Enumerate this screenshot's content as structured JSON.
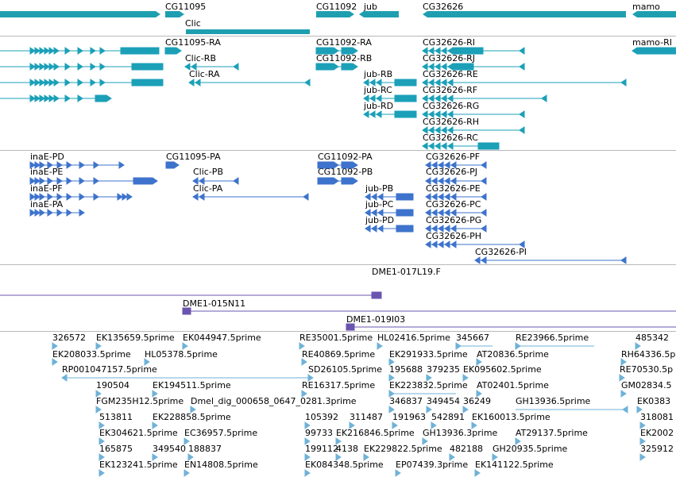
{
  "colors": {
    "gene": "#1e9fb0",
    "mrna": "#1ba0b8",
    "protein": "#3d73cc",
    "clone": "#6a54b0",
    "est": "#6fb2d8",
    "divider": "#b9b9b9"
  },
  "tracks": {
    "genes": [
      {
        "name": "gene-cg11095",
        "label": "CG11095"
      },
      {
        "name": "gene-cg11092",
        "label": "CG11092"
      },
      {
        "name": "gene-jub",
        "label": "jub"
      },
      {
        "name": "gene-cg32626",
        "label": "CG32626"
      },
      {
        "name": "gene-mamo",
        "label": "mamo"
      },
      {
        "name": "gene-clic",
        "label": "Clic"
      }
    ],
    "transcripts": [
      {
        "name": "cg11095-ra",
        "label": "CG11095-RA"
      },
      {
        "name": "cg11092-ra",
        "label": "CG11092-RA"
      },
      {
        "name": "cg32626-ri",
        "label": "CG32626-RI"
      },
      {
        "name": "mamo-ri",
        "label": "mamo-RI"
      },
      {
        "name": "clic-rb",
        "label": "Clic-RB"
      },
      {
        "name": "cg11092-rb",
        "label": "CG11092-RB"
      },
      {
        "name": "cg32626-rj",
        "label": "CG32626-RJ"
      },
      {
        "name": "clic-ra",
        "label": "Clic-RA"
      },
      {
        "name": "jub-rb",
        "label": "jub-RB"
      },
      {
        "name": "cg32626-re",
        "label": "CG32626-RE"
      },
      {
        "name": "jub-rc",
        "label": "jub-RC"
      },
      {
        "name": "cg32626-rf",
        "label": "CG32626-RF"
      },
      {
        "name": "jub-rd",
        "label": "jub-RD"
      },
      {
        "name": "cg32626-rg",
        "label": "CG32626-RG"
      },
      {
        "name": "cg32626-rh",
        "label": "CG32626-RH"
      },
      {
        "name": "cg32626-rc",
        "label": "CG32626-RC"
      }
    ],
    "proteins": [
      {
        "name": "inae-pd",
        "label": "inaE-PD"
      },
      {
        "name": "cg11095-pa",
        "label": "CG11095-PA"
      },
      {
        "name": "cg11092-pa",
        "label": "CG11092-PA"
      },
      {
        "name": "cg32626-pf",
        "label": "CG32626-PF"
      },
      {
        "name": "inae-pe",
        "label": "inaE-PE"
      },
      {
        "name": "clic-pb",
        "label": "Clic-PB"
      },
      {
        "name": "cg11092-pb",
        "label": "CG11092-PB"
      },
      {
        "name": "cg32626-pj",
        "label": "CG32626-PJ"
      },
      {
        "name": "inae-pf",
        "label": "inaE-PF"
      },
      {
        "name": "clic-pa",
        "label": "Clic-PA"
      },
      {
        "name": "jub-pb",
        "label": "jub-PB"
      },
      {
        "name": "cg32626-pe",
        "label": "CG32626-PE"
      },
      {
        "name": "inae-pa",
        "label": "inaE-PA"
      },
      {
        "name": "jub-pc",
        "label": "jub-PC"
      },
      {
        "name": "cg32626-pc",
        "label": "CG32626-PC"
      },
      {
        "name": "jub-pd",
        "label": "jub-PD"
      },
      {
        "name": "cg32626-pg",
        "label": "CG32626-PG"
      },
      {
        "name": "cg32626-ph",
        "label": "CG32626-PH"
      },
      {
        "name": "cg32626-pi",
        "label": "CG32626-PI"
      }
    ],
    "clones": [
      {
        "name": "dme1-017l19f",
        "label": "DME1-017L19.F"
      },
      {
        "name": "dme1-015n11",
        "label": "DME1-015N11"
      },
      {
        "name": "dme1-019i03",
        "label": "DME1-019I03"
      }
    ],
    "ests": [
      {
        "name": "est-326572",
        "label": "326572"
      },
      {
        "name": "est-ek135659",
        "label": "EK135659.5prime"
      },
      {
        "name": "est-ek044947",
        "label": "EK044947.5prime"
      },
      {
        "name": "est-re35001",
        "label": "RE35001.5prime"
      },
      {
        "name": "est-hl02416",
        "label": "HL02416.5prime"
      },
      {
        "name": "est-345667",
        "label": "345667"
      },
      {
        "name": "est-re23966",
        "label": "RE23966.5prime"
      },
      {
        "name": "est-485342",
        "label": "485342"
      },
      {
        "name": "est-ek208033",
        "label": "EK208033.5prime"
      },
      {
        "name": "est-hl05378",
        "label": "HL05378.5prime"
      },
      {
        "name": "est-re40869",
        "label": "RE40869.5prime"
      },
      {
        "name": "est-ek291933",
        "label": "EK291933.5prime"
      },
      {
        "name": "est-at20836",
        "label": "AT20836.5prime"
      },
      {
        "name": "est-rh64336",
        "label": "RH64336.5p"
      },
      {
        "name": "est-rp001047157",
        "label": "RP001047157.5prime"
      },
      {
        "name": "est-sd26105",
        "label": "SD26105.5prime"
      },
      {
        "name": "est-195688",
        "label": "195688"
      },
      {
        "name": "est-379235",
        "label": "379235"
      },
      {
        "name": "est-ek095602",
        "label": "EK095602.5prime"
      },
      {
        "name": "est-re70530",
        "label": "RE70530.5p"
      },
      {
        "name": "est-190504",
        "label": "190504"
      },
      {
        "name": "est-ek194511",
        "label": "EK194511.5prime"
      },
      {
        "name": "est-re16317",
        "label": "RE16317.5prime"
      },
      {
        "name": "est-ek223832",
        "label": "EK223832.5prime"
      },
      {
        "name": "est-at02401",
        "label": "AT02401.5prime"
      },
      {
        "name": "est-gm02834",
        "label": "GM02834.5"
      },
      {
        "name": "est-fgm235h12",
        "label": "FGM235H12.5prime"
      },
      {
        "name": "est-dmel-dig",
        "label": "Dmel_dig_000658_0647_0281.3prime"
      },
      {
        "name": "est-346837",
        "label": "346837"
      },
      {
        "name": "est-349454",
        "label": "349454"
      },
      {
        "name": "est-36249",
        "label": "36249"
      },
      {
        "name": "est-gh13936-5",
        "label": "GH13936.5prime"
      },
      {
        "name": "est-ek0383",
        "label": "EK0383"
      },
      {
        "name": "est-513811",
        "label": "513811"
      },
      {
        "name": "est-ek228858",
        "label": "EK228858.5prime"
      },
      {
        "name": "est-105392",
        "label": "105392"
      },
      {
        "name": "est-311487",
        "label": "311487"
      },
      {
        "name": "est-191963",
        "label": "191963"
      },
      {
        "name": "est-542891",
        "label": "542891"
      },
      {
        "name": "est-ek160013",
        "label": "EK160013.5prime"
      },
      {
        "name": "est-318081",
        "label": "318081"
      },
      {
        "name": "est-ek304621",
        "label": "EK304621.5prime"
      },
      {
        "name": "est-ec36957",
        "label": "EC36957.5prime"
      },
      {
        "name": "est-99733",
        "label": "99733"
      },
      {
        "name": "est-ek216846",
        "label": "EK216846.5prime"
      },
      {
        "name": "est-gh13936-3",
        "label": "GH13936.3prime"
      },
      {
        "name": "est-at29137",
        "label": "AT29137.5prime"
      },
      {
        "name": "est-ek2002",
        "label": "EK2002"
      },
      {
        "name": "est-165875",
        "label": "165875"
      },
      {
        "name": "est-349540",
        "label": "349540"
      },
      {
        "name": "est-188837",
        "label": "188837"
      },
      {
        "name": "est-199112",
        "label": "199112"
      },
      {
        "name": "est-4138",
        "label": "4138"
      },
      {
        "name": "est-ek229822",
        "label": "EK229822.5prime"
      },
      {
        "name": "est-482188",
        "label": "482188"
      },
      {
        "name": "est-gh20935",
        "label": "GH20935.5prime"
      },
      {
        "name": "est-325912",
        "label": "325912"
      },
      {
        "name": "est-ek123241",
        "label": "EK123241.5prime"
      },
      {
        "name": "est-en14808",
        "label": "EN14808.5prime"
      },
      {
        "name": "est-ek084348",
        "label": "EK084348.5prime"
      },
      {
        "name": "est-ep07439",
        "label": "EP07439.3prime"
      },
      {
        "name": "est-ek141122",
        "label": "EK141122.5prime"
      }
    ]
  }
}
